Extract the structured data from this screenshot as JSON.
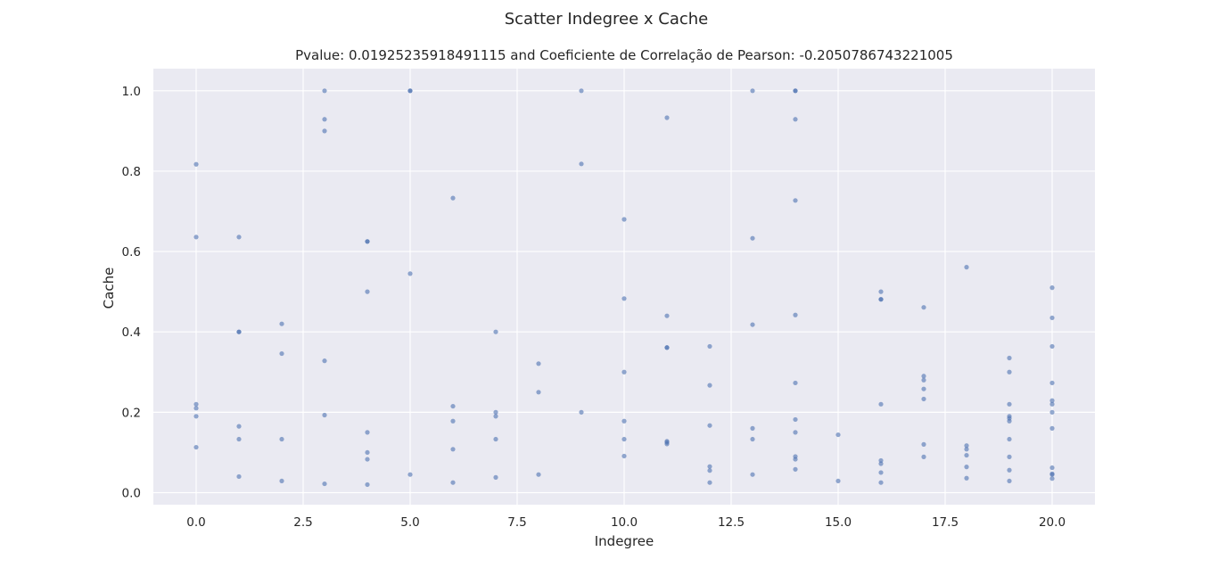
{
  "figure": {
    "title": "Scatter Indegree x Cache",
    "background": "#ffffff"
  },
  "chart_data": {
    "type": "scatter",
    "title": "Pvalue: 0.01925235918491115 and Coeficiente de Correlação de Pearson: -0.2050786743221005",
    "xlabel": "Indegree",
    "ylabel": "Cache",
    "xlim": [
      -1.0,
      21.0
    ],
    "ylim": [
      -0.03,
      1.055
    ],
    "xticks": [
      0.0,
      2.5,
      5.0,
      7.5,
      10.0,
      12.5,
      15.0,
      17.5,
      20.0
    ],
    "xtick_labels": [
      "0.0",
      "2.5",
      "5.0",
      "7.5",
      "10.0",
      "12.5",
      "15.0",
      "17.5",
      "20.0"
    ],
    "yticks": [
      0.0,
      0.2,
      0.4,
      0.6,
      0.8,
      1.0
    ],
    "ytick_labels": [
      "0.0",
      "0.2",
      "0.4",
      "0.6",
      "0.8",
      "1.0"
    ],
    "grid": true,
    "plot_background": "#eaeaf2",
    "grid_color": "#ffffff",
    "marker_color": "#4c72b0",
    "marker_alpha": 0.6,
    "points": [
      [
        0,
        0.817
      ],
      [
        0,
        0.636
      ],
      [
        0,
        0.22
      ],
      [
        0,
        0.21
      ],
      [
        0,
        0.19
      ],
      [
        0,
        0.113
      ],
      [
        1,
        0.636
      ],
      [
        1,
        0.4
      ],
      [
        1,
        0.4
      ],
      [
        1,
        0.165
      ],
      [
        1,
        0.133
      ],
      [
        1,
        0.04
      ],
      [
        2,
        0.42
      ],
      [
        2,
        0.346
      ],
      [
        2,
        0.133
      ],
      [
        2,
        0.029
      ],
      [
        3,
        1.0
      ],
      [
        3,
        0.929
      ],
      [
        3,
        0.9
      ],
      [
        3,
        0.328
      ],
      [
        3,
        0.193
      ],
      [
        3,
        0.022
      ],
      [
        4,
        0.625
      ],
      [
        4,
        0.625
      ],
      [
        4,
        0.5
      ],
      [
        4,
        0.15
      ],
      [
        4,
        0.1
      ],
      [
        4,
        0.083
      ],
      [
        4,
        0.02
      ],
      [
        5,
        1.0
      ],
      [
        5,
        1.0
      ],
      [
        5,
        0.545
      ],
      [
        5,
        0.045
      ],
      [
        6,
        0.733
      ],
      [
        6,
        0.215
      ],
      [
        6,
        0.178
      ],
      [
        6,
        0.108
      ],
      [
        6,
        0.025
      ],
      [
        7,
        0.4
      ],
      [
        7,
        0.2
      ],
      [
        7,
        0.19
      ],
      [
        7,
        0.133
      ],
      [
        7,
        0.038
      ],
      [
        8,
        0.321
      ],
      [
        8,
        0.25
      ],
      [
        8,
        0.045
      ],
      [
        9,
        1.0
      ],
      [
        9,
        0.818
      ],
      [
        9,
        0.2
      ],
      [
        10,
        0.68
      ],
      [
        10,
        0.483
      ],
      [
        10,
        0.3
      ],
      [
        10,
        0.178
      ],
      [
        10,
        0.133
      ],
      [
        10,
        0.091
      ],
      [
        11,
        0.933
      ],
      [
        11,
        0.44
      ],
      [
        11,
        0.361
      ],
      [
        11,
        0.361
      ],
      [
        11,
        0.128
      ],
      [
        11,
        0.125
      ],
      [
        11,
        0.121
      ],
      [
        12,
        0.364
      ],
      [
        12,
        0.267
      ],
      [
        12,
        0.167
      ],
      [
        12,
        0.065
      ],
      [
        12,
        0.055
      ],
      [
        12,
        0.025
      ],
      [
        13,
        1.0
      ],
      [
        13,
        0.633
      ],
      [
        13,
        0.418
      ],
      [
        13,
        0.16
      ],
      [
        13,
        0.133
      ],
      [
        13,
        0.045
      ],
      [
        14,
        1.0
      ],
      [
        14,
        1.0
      ],
      [
        14,
        0.929
      ],
      [
        14,
        0.727
      ],
      [
        14,
        0.442
      ],
      [
        14,
        0.273
      ],
      [
        14,
        0.182
      ],
      [
        14,
        0.15
      ],
      [
        14,
        0.09
      ],
      [
        14,
        0.083
      ],
      [
        14,
        0.058
      ],
      [
        15,
        0.144
      ],
      [
        15,
        0.029
      ],
      [
        16,
        0.5
      ],
      [
        16,
        0.481
      ],
      [
        16,
        0.481
      ],
      [
        16,
        0.22
      ],
      [
        16,
        0.08
      ],
      [
        16,
        0.072
      ],
      [
        16,
        0.05
      ],
      [
        16,
        0.025
      ],
      [
        17,
        0.461
      ],
      [
        17,
        0.29
      ],
      [
        17,
        0.28
      ],
      [
        17,
        0.258
      ],
      [
        17,
        0.233
      ],
      [
        17,
        0.12
      ],
      [
        17,
        0.089
      ],
      [
        18,
        0.561
      ],
      [
        18,
        0.117
      ],
      [
        18,
        0.108
      ],
      [
        18,
        0.093
      ],
      [
        18,
        0.064
      ],
      [
        18,
        0.036
      ],
      [
        19,
        0.335
      ],
      [
        19,
        0.3
      ],
      [
        19,
        0.22
      ],
      [
        19,
        0.19
      ],
      [
        19,
        0.185
      ],
      [
        19,
        0.178
      ],
      [
        19,
        0.133
      ],
      [
        19,
        0.089
      ],
      [
        19,
        0.056
      ],
      [
        19,
        0.029
      ],
      [
        20,
        0.51
      ],
      [
        20,
        0.435
      ],
      [
        20,
        0.364
      ],
      [
        20,
        0.273
      ],
      [
        20,
        0.229
      ],
      [
        20,
        0.22
      ],
      [
        20,
        0.2
      ],
      [
        20,
        0.16
      ],
      [
        20,
        0.062
      ],
      [
        20,
        0.047
      ],
      [
        20,
        0.045
      ],
      [
        20,
        0.035
      ]
    ]
  }
}
